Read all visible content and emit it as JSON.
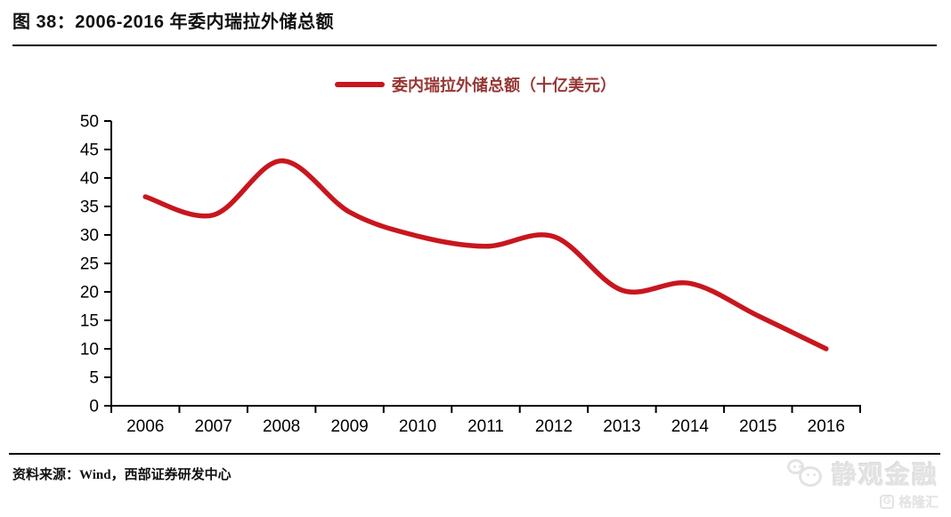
{
  "header": {
    "title": "图 38：2006-2016 年委内瑞拉外储总额"
  },
  "legend": {
    "label": "委内瑞拉外储总额（十亿美元）"
  },
  "chart_data": {
    "type": "line",
    "title": "2006-2016 年委内瑞拉外储总额",
    "legend": "委内瑞拉外储总额（十亿美元）",
    "categories": [
      "2006",
      "2007",
      "2008",
      "2009",
      "2010",
      "2011",
      "2012",
      "2013",
      "2014",
      "2015",
      "2016"
    ],
    "values": [
      36.7,
      33.5,
      43.0,
      34.0,
      29.8,
      28.0,
      29.7,
      20.3,
      21.5,
      15.8,
      10.0
    ],
    "xlabel": "",
    "ylabel": "",
    "ylim": [
      0,
      50
    ],
    "ytick_step": 5,
    "grid": false,
    "smooth": true,
    "legend_position": "top-center",
    "line_color": "#C8161E"
  },
  "footer": {
    "source": "资料来源：Wind，西部证券研发中心",
    "watermark_title": "静观金融",
    "watermark_subtitle": "格隆汇"
  },
  "colors": {
    "accent_red": "#C8161E",
    "legend_text": "#963735",
    "axis_black": "#000000",
    "watermark": "#e3e3e3"
  }
}
